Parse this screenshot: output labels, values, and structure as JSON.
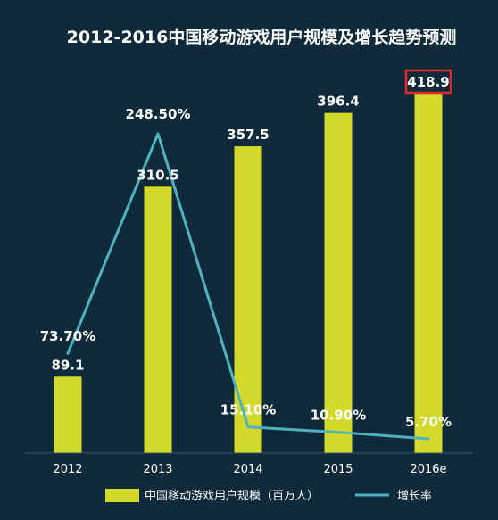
{
  "chart_data": {
    "type": "bar",
    "title": "2012-2016中国移动游戏用户规模及增长趋势预测",
    "categories": [
      "2012",
      "2013",
      "2014",
      "2015",
      "2016e"
    ],
    "series": [
      {
        "name": "中国移动游戏用户规模（百万人）",
        "type": "bar",
        "values": [
          89.1,
          310.5,
          357.5,
          396.4,
          418.9
        ],
        "labels": [
          "89.1",
          "310.5",
          "357.5",
          "396.4",
          "418.9"
        ],
        "color": "#d3d92a"
      },
      {
        "name": "增长率",
        "type": "line",
        "values": [
          73.7,
          248.5,
          15.1,
          10.9,
          5.7
        ],
        "labels": [
          "73.70%",
          "248.50%",
          "15.10%",
          "10.90%",
          "5.70%"
        ],
        "color": "#4fb3bf"
      }
    ],
    "highlight": {
      "label": "418.9",
      "color": "#e02a2a"
    },
    "grid": false,
    "legend_position": "bottom"
  }
}
